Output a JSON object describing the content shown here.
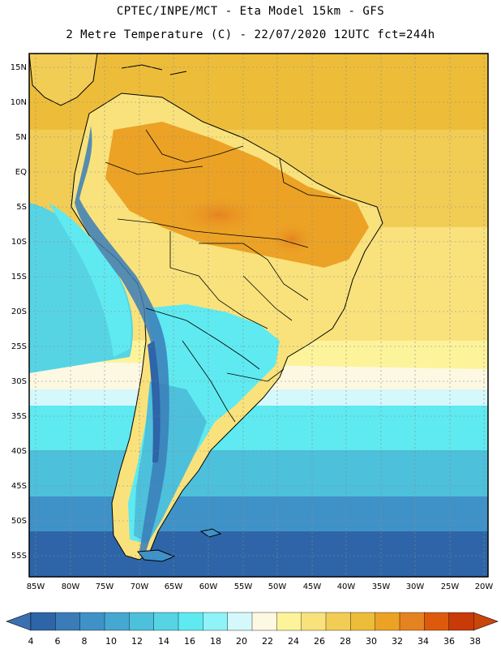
{
  "header": {
    "line1": "CPTEC/INPE/MCT  -   Eta Model 15km  -  GFS",
    "line2": "2 Metre Temperature (C) - 22/07/2020 12UTC fct=244h"
  },
  "map": {
    "lat_labels": [
      "15N",
      "10N",
      "5N",
      "EQ",
      "5S",
      "10S",
      "15S",
      "20S",
      "25S",
      "30S",
      "35S",
      "40S",
      "45S",
      "50S",
      "55S"
    ],
    "lon_labels": [
      "85W",
      "80W",
      "75W",
      "70W",
      "65W",
      "60W",
      "55W",
      "50W",
      "45W",
      "40W",
      "35W",
      "30W",
      "25W",
      "20W"
    ]
  },
  "colorbar": {
    "labels": [
      "4",
      "6",
      "8",
      "10",
      "12",
      "14",
      "16",
      "18",
      "20",
      "22",
      "24",
      "26",
      "28",
      "30",
      "32",
      "34",
      "36",
      "38"
    ],
    "colors": [
      "#2d65a8",
      "#3a7cb8",
      "#3f92c8",
      "#45a8d2",
      "#4dc0dc",
      "#56d4e4",
      "#5eeaf0",
      "#8ff3f8",
      "#d4f8fb",
      "#fdf8e2",
      "#fdf39b",
      "#f9e27c",
      "#f2cd55",
      "#edbd3a",
      "#eca225",
      "#e58320",
      "#dd5a0d",
      "#c83a08"
    ],
    "low_color": "#3b6fb0",
    "high_color": "#c8460a"
  }
}
